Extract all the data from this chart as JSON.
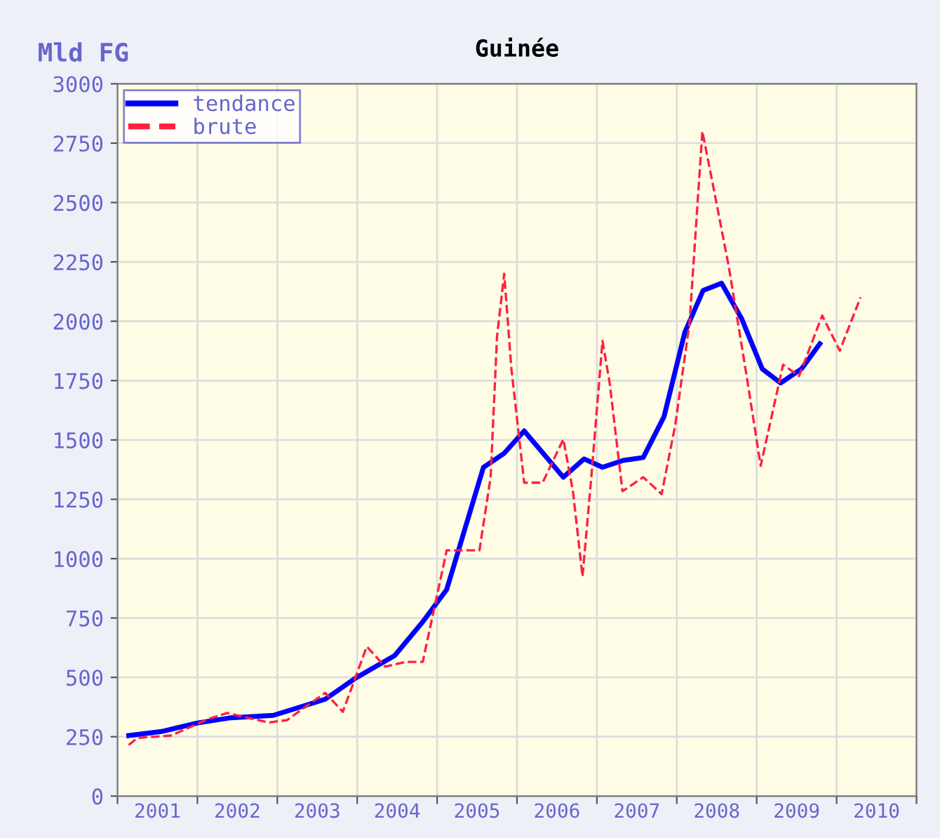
{
  "chart_data": {
    "type": "line",
    "title": "Guinée",
    "ylabel": "Mld FG",
    "xlim": [
      2001,
      2011
    ],
    "ylim": [
      0,
      3000
    ],
    "xticks": [
      {
        "value": 2001,
        "label": null
      },
      {
        "value": 2002,
        "label": null
      },
      {
        "value": 2003,
        "label": null
      },
      {
        "value": 2004,
        "label": null
      },
      {
        "value": 2005,
        "label": null
      },
      {
        "value": 2006,
        "label": null
      },
      {
        "value": 2007,
        "label": null
      },
      {
        "value": 2008,
        "label": null
      },
      {
        "value": 2009,
        "label": null
      },
      {
        "value": 2010,
        "label": null
      },
      {
        "value": 2011,
        "label": null
      },
      {
        "value": 2001.5,
        "label": "2001"
      },
      {
        "value": 2002.5,
        "label": "2002"
      },
      {
        "value": 2003.5,
        "label": "2003"
      },
      {
        "value": 2004.5,
        "label": "2004"
      },
      {
        "value": 2005.5,
        "label": "2005"
      },
      {
        "value": 2006.5,
        "label": "2006"
      },
      {
        "value": 2007.5,
        "label": "2007"
      },
      {
        "value": 2008.5,
        "label": "2008"
      },
      {
        "value": 2009.5,
        "label": "2009"
      },
      {
        "value": 2010.5,
        "label": "2010"
      }
    ],
    "yticks": [
      0,
      250,
      500,
      750,
      1000,
      1250,
      1500,
      1750,
      2000,
      2250,
      2500,
      2750,
      3000
    ],
    "grid": true,
    "legend": "top left",
    "series": [
      {
        "name": "tendance",
        "color": "#0000ff",
        "line_style": "solid",
        "x": [
          2001.14,
          2001.55,
          2002.0,
          2002.42,
          2002.95,
          2003.6,
          2003.98,
          2004.47,
          2004.82,
          2005.12,
          2005.58,
          2005.84,
          2006.09,
          2006.58,
          2006.84,
          2007.07,
          2007.33,
          2007.58,
          2007.84,
          2008.1,
          2008.33,
          2008.56,
          2008.81,
          2009.07,
          2009.3,
          2009.56,
          2009.79
        ],
        "values": [
          255,
          272,
          308,
          330,
          340,
          408,
          497,
          592,
          734,
          870,
          1385,
          1444,
          1538,
          1343,
          1420,
          1385,
          1414,
          1426,
          1598,
          1953,
          2130,
          2160,
          2012,
          1799,
          1740,
          1799,
          1905
        ]
      },
      {
        "name": "brute",
        "color": "#ff2040",
        "line_style": "dashed",
        "x": [
          2001.14,
          2001.25,
          2001.67,
          2002.14,
          2002.37,
          2002.89,
          2003.12,
          2003.6,
          2003.82,
          2004.12,
          2004.35,
          2004.6,
          2004.82,
          2005.12,
          2005.53,
          2005.67,
          2005.75,
          2005.84,
          2005.93,
          2006.09,
          2006.32,
          2006.58,
          2006.7,
          2006.82,
          2006.93,
          2007.07,
          2007.16,
          2007.32,
          2007.58,
          2007.81,
          2007.98,
          2008.16,
          2008.32,
          2008.47,
          2008.65,
          2008.86,
          2009.05,
          2009.33,
          2009.53,
          2009.82,
          2010.04,
          2010.3
        ],
        "values": [
          215,
          245,
          255,
          325,
          350,
          310,
          320,
          435,
          355,
          630,
          545,
          565,
          565,
          1035,
          1035,
          1343,
          1935,
          2200,
          1799,
          1320,
          1320,
          1503,
          1284,
          925,
          1343,
          1917,
          1740,
          1284,
          1343,
          1272,
          1562,
          1994,
          2800,
          2544,
          2231,
          1799,
          1391,
          1817,
          1769,
          2024,
          1876,
          2101
        ]
      }
    ]
  }
}
